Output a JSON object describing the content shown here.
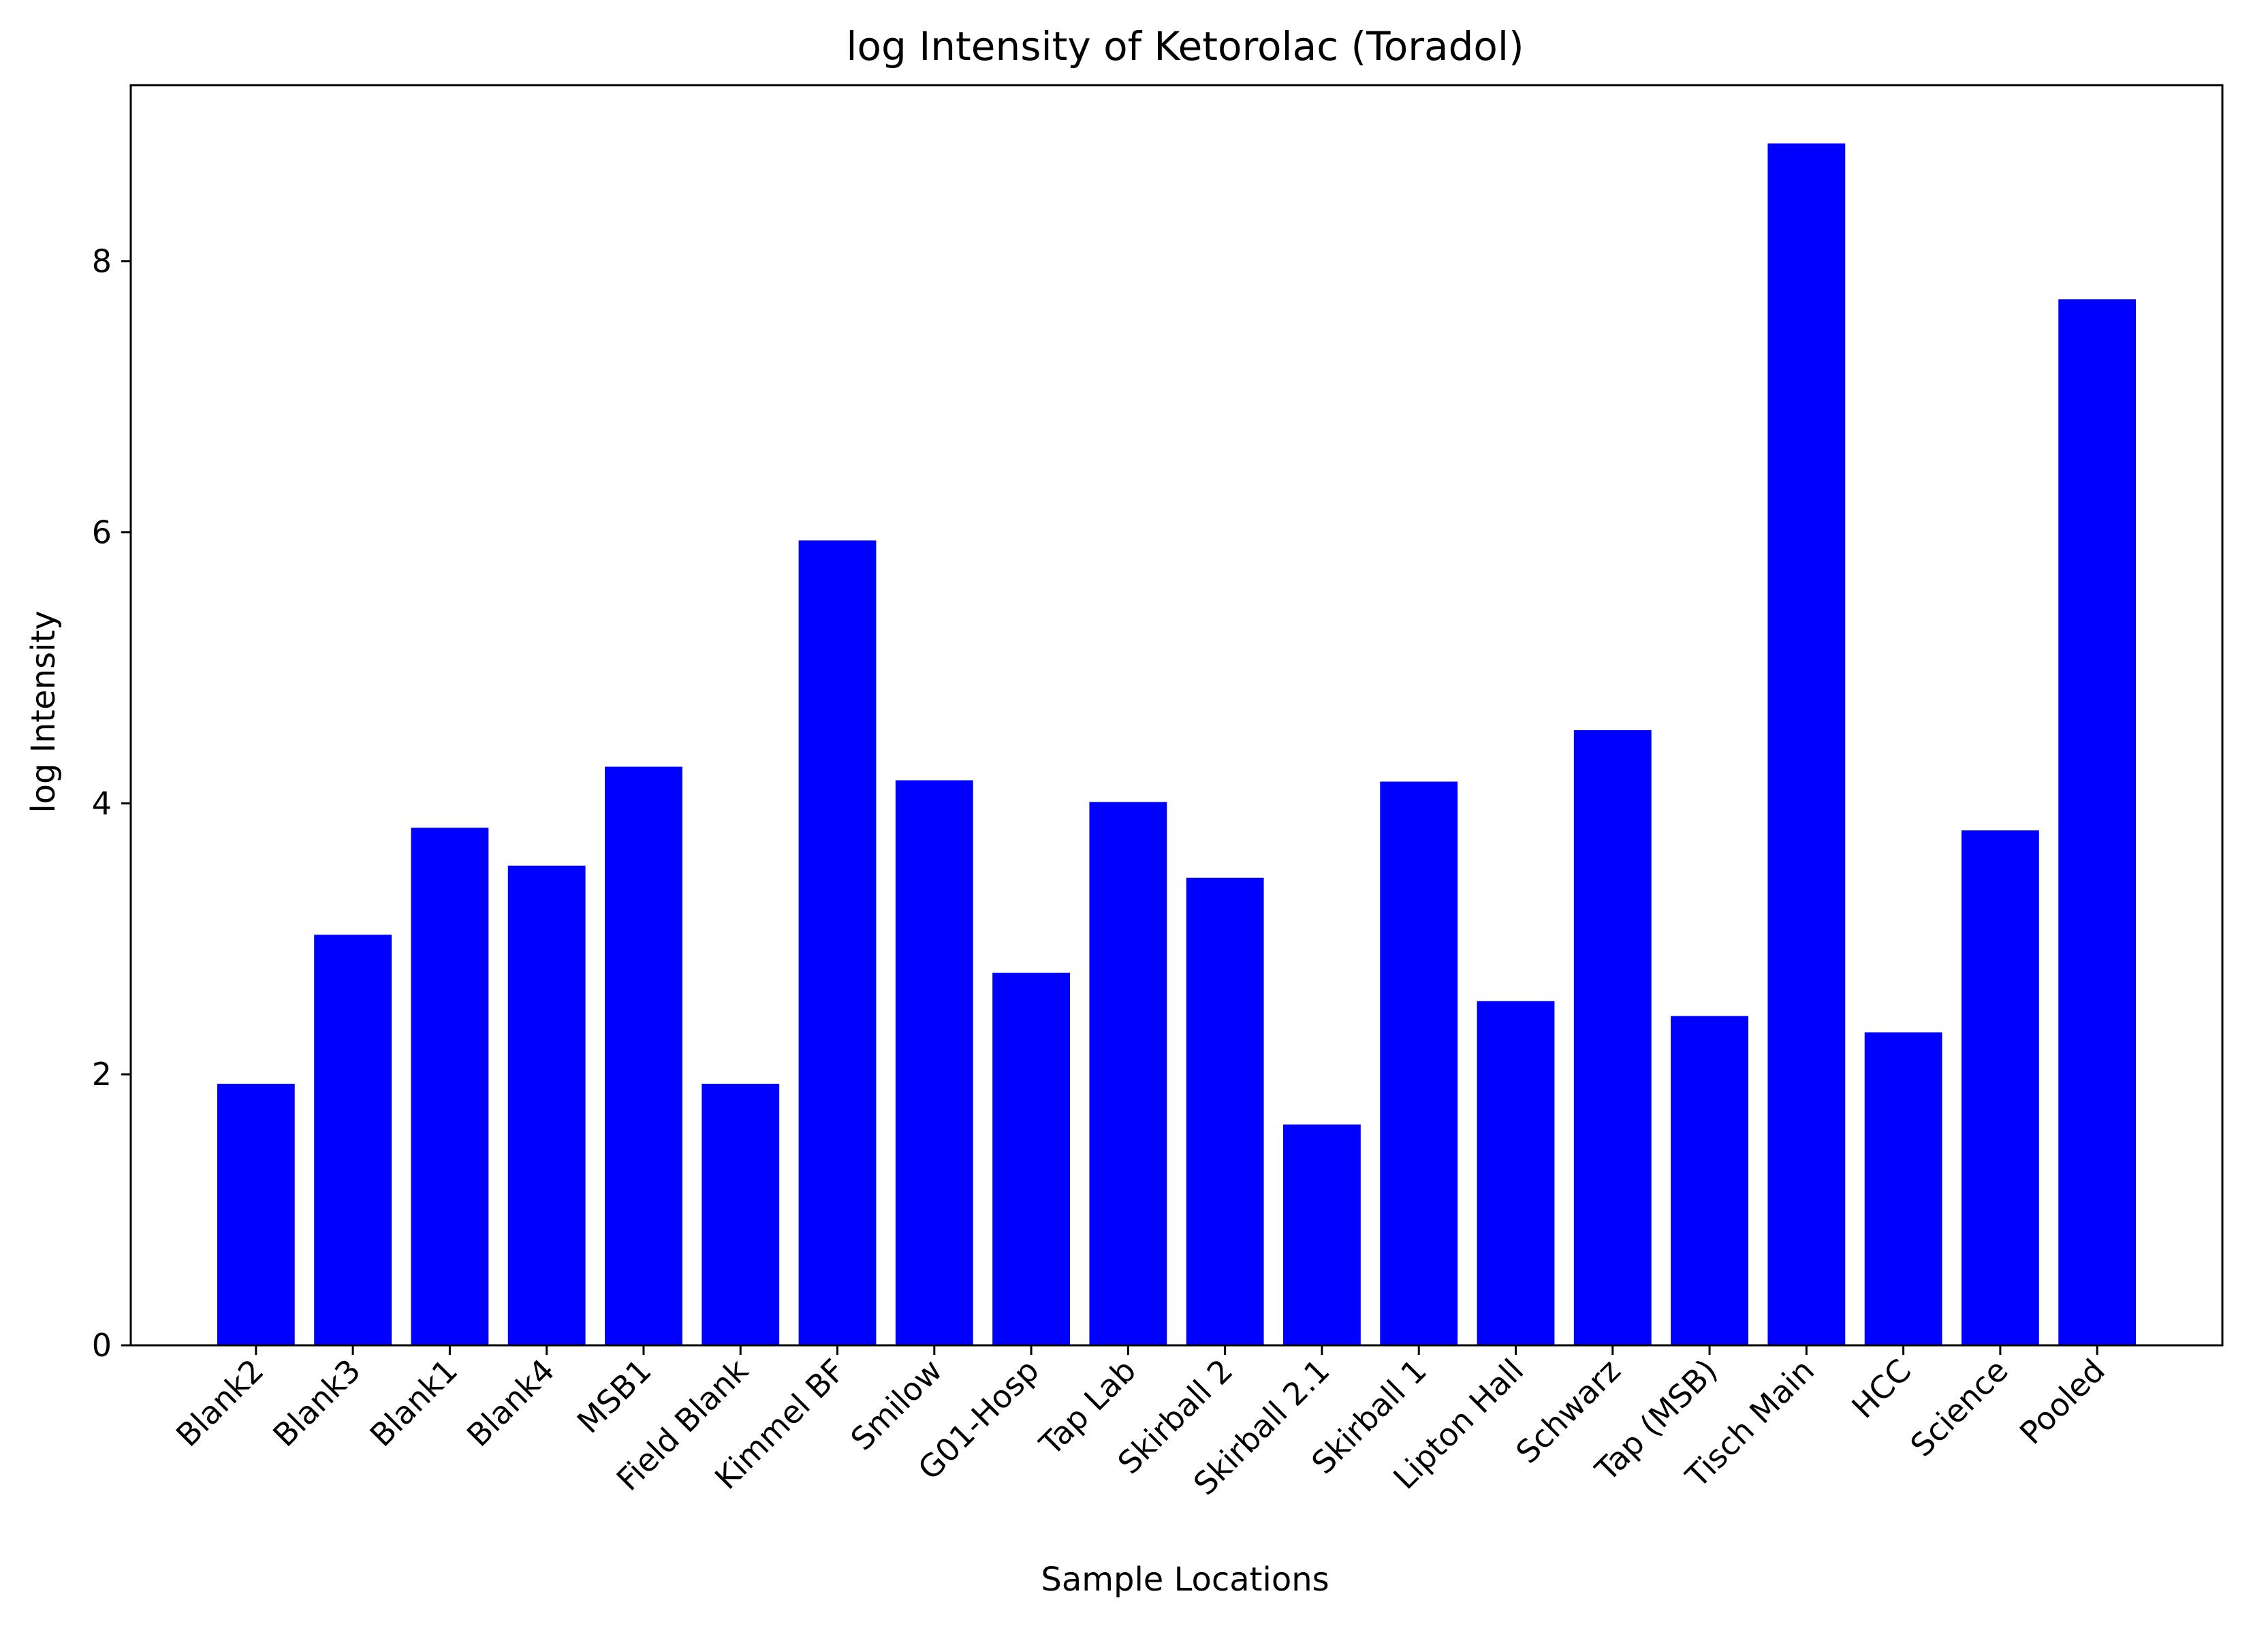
{
  "chart_data": {
    "type": "bar",
    "title": "log Intensity of Ketorolac (Toradol)",
    "xlabel": "Sample Locations",
    "ylabel": "log Intensity",
    "categories": [
      "Blank2",
      "Blank3",
      "Blank1",
      "Blank4",
      "MSB1",
      "Field Blank",
      "Kimmel BF",
      "Smilow",
      "G01-Hosp",
      "Tap Lab",
      "Skirball 2",
      "Skirball 2.1",
      "Skirball 1",
      "Lipton Hall",
      "Schwarz",
      "Tap (MSB)",
      "Tisch Main",
      "HCC",
      "Science",
      "Pooled"
    ],
    "values": [
      1.93,
      3.03,
      3.82,
      3.54,
      4.27,
      1.93,
      5.94,
      4.17,
      2.75,
      4.01,
      3.45,
      1.63,
      4.16,
      2.54,
      4.54,
      2.43,
      8.87,
      2.31,
      3.8,
      7.72
    ],
    "yticks": [
      0,
      2,
      4,
      6,
      8
    ],
    "ylim": [
      0,
      9.3
    ],
    "grid": false,
    "bar_color": "#0000ff"
  }
}
